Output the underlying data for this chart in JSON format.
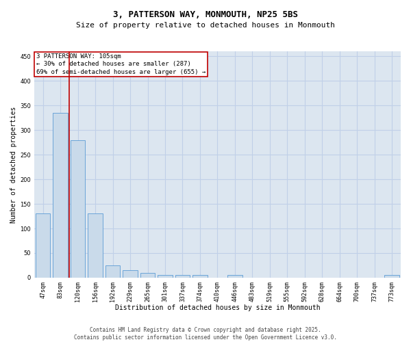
{
  "title_line1": "3, PATTERSON WAY, MONMOUTH, NP25 5BS",
  "title_line2": "Size of property relative to detached houses in Monmouth",
  "xlabel": "Distribution of detached houses by size in Monmouth",
  "ylabel": "Number of detached properties",
  "categories": [
    "47sqm",
    "83sqm",
    "120sqm",
    "156sqm",
    "192sqm",
    "229sqm",
    "265sqm",
    "301sqm",
    "337sqm",
    "374sqm",
    "410sqm",
    "446sqm",
    "483sqm",
    "519sqm",
    "555sqm",
    "592sqm",
    "628sqm",
    "664sqm",
    "700sqm",
    "737sqm",
    "773sqm"
  ],
  "values": [
    130,
    335,
    280,
    130,
    25,
    15,
    10,
    5,
    5,
    5,
    0,
    5,
    0,
    0,
    0,
    0,
    0,
    0,
    0,
    0,
    5
  ],
  "bar_color": "#c9daea",
  "bar_edge_color": "#5b9bd5",
  "vline_x_index": 2,
  "vline_color": "#c00000",
  "annotation_text": "3 PATTERSON WAY: 105sqm\n← 30% of detached houses are smaller (287)\n69% of semi-detached houses are larger (655) →",
  "annotation_box_color": "#ffffff",
  "annotation_box_edge_color": "#c00000",
  "ylim": [
    0,
    460
  ],
  "yticks": [
    0,
    50,
    100,
    150,
    200,
    250,
    300,
    350,
    400,
    450
  ],
  "grid_color": "#c0d0e8",
  "background_color": "#dce6f0",
  "footer_line1": "Contains HM Land Registry data © Crown copyright and database right 2025.",
  "footer_line2": "Contains public sector information licensed under the Open Government Licence v3.0.",
  "title_fontsize": 9,
  "subtitle_fontsize": 8,
  "axis_label_fontsize": 7,
  "tick_fontsize": 6,
  "annotation_fontsize": 6.5,
  "footer_fontsize": 5.5
}
